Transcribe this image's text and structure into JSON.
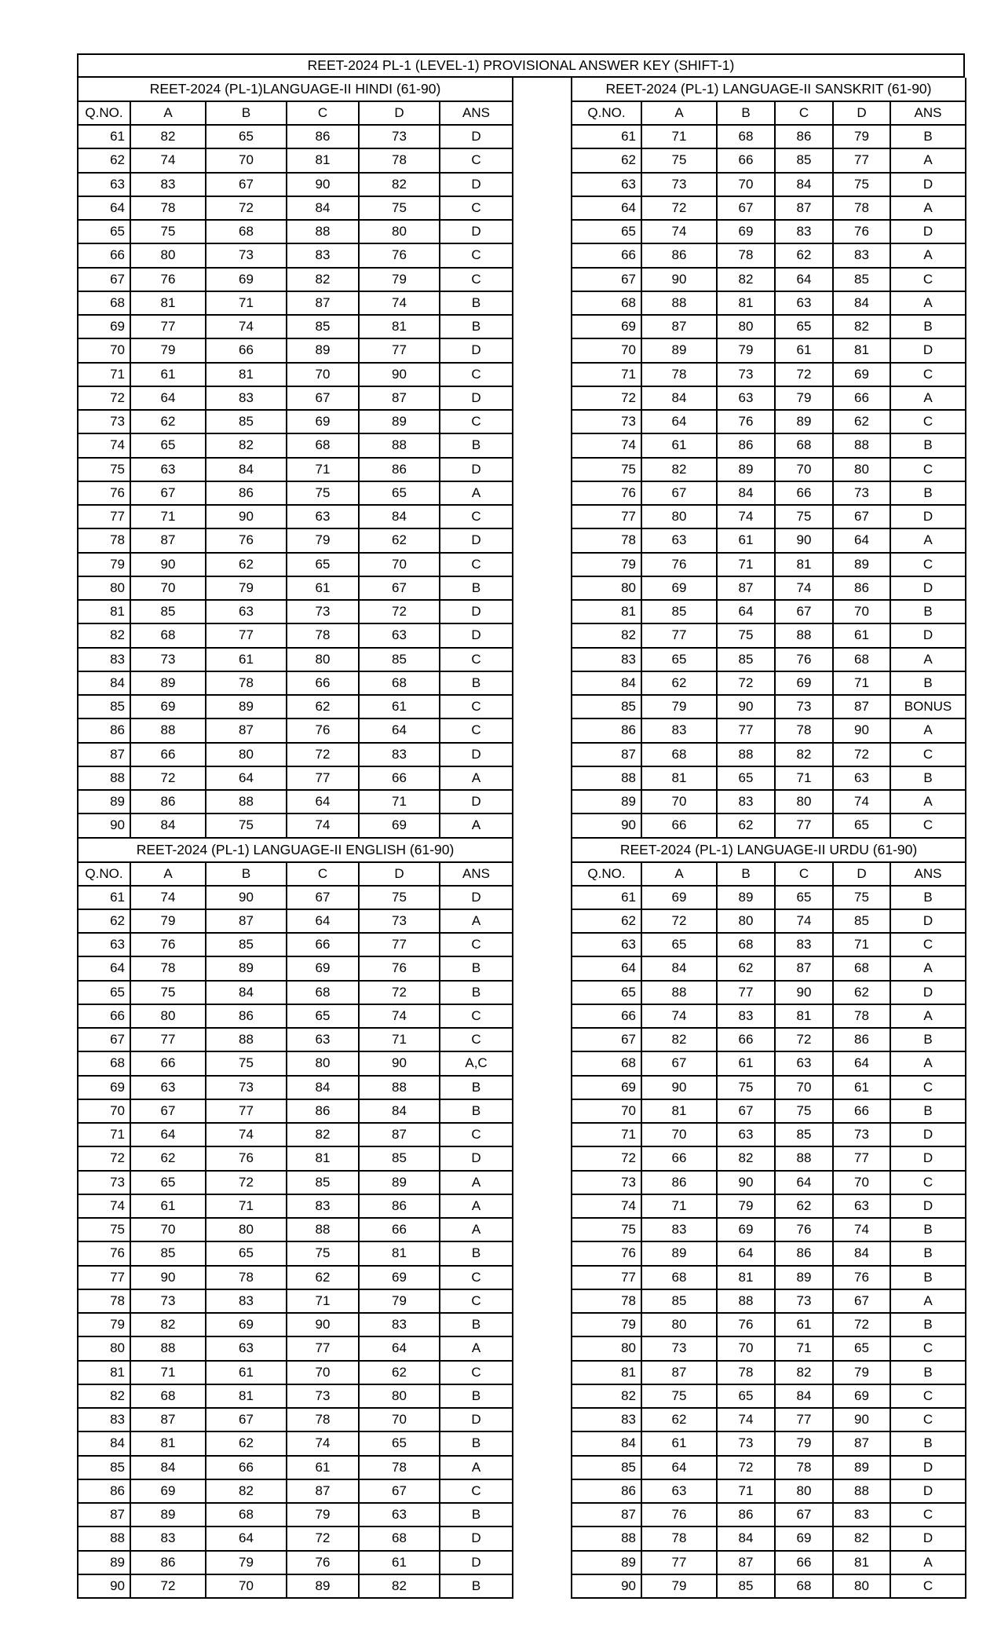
{
  "page": {
    "title": "REET-2024 PL-1 (LEVEL-1) PROVISIONAL ANSWER KEY (SHIFT-1)"
  },
  "columns": [
    "Q.NO.",
    "A",
    "B",
    "C",
    "D",
    "ANS"
  ],
  "tables": [
    {
      "subject": "hindi",
      "header": "REET-2024 (PL-1)LANGUAGE-II HINDI (61-90)",
      "rows": [
        [
          61,
          82,
          65,
          86,
          73,
          "D"
        ],
        [
          62,
          74,
          70,
          81,
          78,
          "C"
        ],
        [
          63,
          83,
          67,
          90,
          82,
          "D"
        ],
        [
          64,
          78,
          72,
          84,
          75,
          "C"
        ],
        [
          65,
          75,
          68,
          88,
          80,
          "D"
        ],
        [
          66,
          80,
          73,
          83,
          76,
          "C"
        ],
        [
          67,
          76,
          69,
          82,
          79,
          "C"
        ],
        [
          68,
          81,
          71,
          87,
          74,
          "B"
        ],
        [
          69,
          77,
          74,
          85,
          81,
          "B"
        ],
        [
          70,
          79,
          66,
          89,
          77,
          "D"
        ],
        [
          71,
          61,
          81,
          70,
          90,
          "C"
        ],
        [
          72,
          64,
          83,
          67,
          87,
          "D"
        ],
        [
          73,
          62,
          85,
          69,
          89,
          "C"
        ],
        [
          74,
          65,
          82,
          68,
          88,
          "B"
        ],
        [
          75,
          63,
          84,
          71,
          86,
          "D"
        ],
        [
          76,
          67,
          86,
          75,
          65,
          "A"
        ],
        [
          77,
          71,
          90,
          63,
          84,
          "C"
        ],
        [
          78,
          87,
          76,
          79,
          62,
          "D"
        ],
        [
          79,
          90,
          62,
          65,
          70,
          "C"
        ],
        [
          80,
          70,
          79,
          61,
          67,
          "B"
        ],
        [
          81,
          85,
          63,
          73,
          72,
          "D"
        ],
        [
          82,
          68,
          77,
          78,
          63,
          "D"
        ],
        [
          83,
          73,
          61,
          80,
          85,
          "C"
        ],
        [
          84,
          89,
          78,
          66,
          68,
          "B"
        ],
        [
          85,
          69,
          89,
          62,
          61,
          "C"
        ],
        [
          86,
          88,
          87,
          76,
          64,
          "C"
        ],
        [
          87,
          66,
          80,
          72,
          83,
          "D"
        ],
        [
          88,
          72,
          64,
          77,
          66,
          "A"
        ],
        [
          89,
          86,
          88,
          64,
          71,
          "D"
        ],
        [
          90,
          84,
          75,
          74,
          69,
          "A"
        ]
      ]
    },
    {
      "subject": "sanskrit",
      "header": "REET-2024 (PL-1) LANGUAGE-II SANSKRIT (61-90)",
      "rows": [
        [
          61,
          71,
          68,
          86,
          79,
          "B"
        ],
        [
          62,
          75,
          66,
          85,
          77,
          "A"
        ],
        [
          63,
          73,
          70,
          84,
          75,
          "D"
        ],
        [
          64,
          72,
          67,
          87,
          78,
          "A"
        ],
        [
          65,
          74,
          69,
          83,
          76,
          "D"
        ],
        [
          66,
          86,
          78,
          62,
          83,
          "A"
        ],
        [
          67,
          90,
          82,
          64,
          85,
          "C"
        ],
        [
          68,
          88,
          81,
          63,
          84,
          "A"
        ],
        [
          69,
          87,
          80,
          65,
          82,
          "B"
        ],
        [
          70,
          89,
          79,
          61,
          81,
          "D"
        ],
        [
          71,
          78,
          73,
          72,
          69,
          "C"
        ],
        [
          72,
          84,
          63,
          79,
          66,
          "A"
        ],
        [
          73,
          64,
          76,
          89,
          62,
          "C"
        ],
        [
          74,
          61,
          86,
          68,
          88,
          "B"
        ],
        [
          75,
          82,
          89,
          70,
          80,
          "C"
        ],
        [
          76,
          67,
          84,
          66,
          73,
          "B"
        ],
        [
          77,
          80,
          74,
          75,
          67,
          "D"
        ],
        [
          78,
          63,
          61,
          90,
          64,
          "A"
        ],
        [
          79,
          76,
          71,
          81,
          89,
          "C"
        ],
        [
          80,
          69,
          87,
          74,
          86,
          "D"
        ],
        [
          81,
          85,
          64,
          67,
          70,
          "B"
        ],
        [
          82,
          77,
          75,
          88,
          61,
          "D"
        ],
        [
          83,
          65,
          85,
          76,
          68,
          "A"
        ],
        [
          84,
          62,
          72,
          69,
          71,
          "B"
        ],
        [
          85,
          79,
          90,
          73,
          87,
          "BONUS"
        ],
        [
          86,
          83,
          77,
          78,
          90,
          "A"
        ],
        [
          87,
          68,
          88,
          82,
          72,
          "C"
        ],
        [
          88,
          81,
          65,
          71,
          63,
          "B"
        ],
        [
          89,
          70,
          83,
          80,
          74,
          "A"
        ],
        [
          90,
          66,
          62,
          77,
          65,
          "C"
        ]
      ]
    },
    {
      "subject": "english",
      "header": "REET-2024 (PL-1) LANGUAGE-II ENGLISH (61-90)",
      "rows": [
        [
          61,
          74,
          90,
          67,
          75,
          "D"
        ],
        [
          62,
          79,
          87,
          64,
          73,
          "A"
        ],
        [
          63,
          76,
          85,
          66,
          77,
          "C"
        ],
        [
          64,
          78,
          89,
          69,
          76,
          "B"
        ],
        [
          65,
          75,
          84,
          68,
          72,
          "B"
        ],
        [
          66,
          80,
          86,
          65,
          74,
          "C"
        ],
        [
          67,
          77,
          88,
          63,
          71,
          "C"
        ],
        [
          68,
          66,
          75,
          80,
          90,
          "A,C"
        ],
        [
          69,
          63,
          73,
          84,
          88,
          "B"
        ],
        [
          70,
          67,
          77,
          86,
          84,
          "B"
        ],
        [
          71,
          64,
          74,
          82,
          87,
          "C"
        ],
        [
          72,
          62,
          76,
          81,
          85,
          "D"
        ],
        [
          73,
          65,
          72,
          85,
          89,
          "A"
        ],
        [
          74,
          61,
          71,
          83,
          86,
          "A"
        ],
        [
          75,
          70,
          80,
          88,
          66,
          "A"
        ],
        [
          76,
          85,
          65,
          75,
          81,
          "B"
        ],
        [
          77,
          90,
          78,
          62,
          69,
          "C"
        ],
        [
          78,
          73,
          83,
          71,
          79,
          "C"
        ],
        [
          79,
          82,
          69,
          90,
          83,
          "B"
        ],
        [
          80,
          88,
          63,
          77,
          64,
          "A"
        ],
        [
          81,
          71,
          61,
          70,
          62,
          "C"
        ],
        [
          82,
          68,
          81,
          73,
          80,
          "B"
        ],
        [
          83,
          87,
          67,
          78,
          70,
          "D"
        ],
        [
          84,
          81,
          62,
          74,
          65,
          "B"
        ],
        [
          85,
          84,
          66,
          61,
          78,
          "A"
        ],
        [
          86,
          69,
          82,
          87,
          67,
          "C"
        ],
        [
          87,
          89,
          68,
          79,
          63,
          "B"
        ],
        [
          88,
          83,
          64,
          72,
          68,
          "D"
        ],
        [
          89,
          86,
          79,
          76,
          61,
          "D"
        ],
        [
          90,
          72,
          70,
          89,
          82,
          "B"
        ]
      ]
    },
    {
      "subject": "urdu",
      "header": "REET-2024 (PL-1) LANGUAGE-II URDU (61-90)",
      "rows": [
        [
          61,
          69,
          89,
          65,
          75,
          "B"
        ],
        [
          62,
          72,
          80,
          74,
          85,
          "D"
        ],
        [
          63,
          65,
          68,
          83,
          71,
          "C"
        ],
        [
          64,
          84,
          62,
          87,
          68,
          "A"
        ],
        [
          65,
          88,
          77,
          90,
          62,
          "D"
        ],
        [
          66,
          74,
          83,
          81,
          78,
          "A"
        ],
        [
          67,
          82,
          66,
          72,
          86,
          "B"
        ],
        [
          68,
          67,
          61,
          63,
          64,
          "A"
        ],
        [
          69,
          90,
          75,
          70,
          61,
          "C"
        ],
        [
          70,
          81,
          67,
          75,
          66,
          "B"
        ],
        [
          71,
          70,
          63,
          85,
          73,
          "D"
        ],
        [
          72,
          66,
          82,
          88,
          77,
          "D"
        ],
        [
          73,
          86,
          90,
          64,
          70,
          "C"
        ],
        [
          74,
          71,
          79,
          62,
          63,
          "D"
        ],
        [
          75,
          83,
          69,
          76,
          74,
          "B"
        ],
        [
          76,
          89,
          64,
          86,
          84,
          "B"
        ],
        [
          77,
          68,
          81,
          89,
          76,
          "B"
        ],
        [
          78,
          85,
          88,
          73,
          67,
          "A"
        ],
        [
          79,
          80,
          76,
          61,
          72,
          "B"
        ],
        [
          80,
          73,
          70,
          71,
          65,
          "C"
        ],
        [
          81,
          87,
          78,
          82,
          79,
          "B"
        ],
        [
          82,
          75,
          65,
          84,
          69,
          "C"
        ],
        [
          83,
          62,
          74,
          77,
          90,
          "C"
        ],
        [
          84,
          61,
          73,
          79,
          87,
          "B"
        ],
        [
          85,
          64,
          72,
          78,
          89,
          "D"
        ],
        [
          86,
          63,
          71,
          80,
          88,
          "D"
        ],
        [
          87,
          76,
          86,
          67,
          83,
          "C"
        ],
        [
          88,
          78,
          84,
          69,
          82,
          "D"
        ],
        [
          89,
          77,
          87,
          66,
          81,
          "A"
        ],
        [
          90,
          79,
          85,
          68,
          80,
          "C"
        ]
      ]
    }
  ]
}
